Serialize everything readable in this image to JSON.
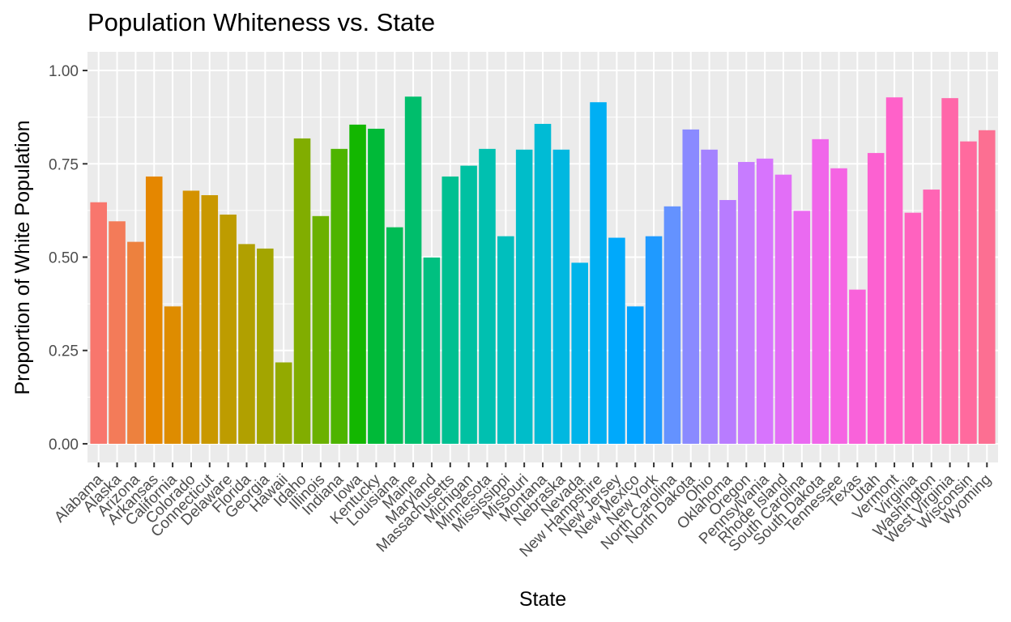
{
  "chart_data": {
    "type": "bar",
    "title": "Population Whiteness vs. State",
    "xlabel": "State",
    "ylabel": "Proportion of White Population",
    "ylim": [
      -0.05,
      1.05
    ],
    "yticks": [
      "0.00",
      "0.25",
      "0.50",
      "0.75",
      "1.00"
    ],
    "grid": true,
    "legend": "none",
    "categories": [
      "Alabama",
      "Alaska",
      "Arizona",
      "Arkansas",
      "California",
      "Colorado",
      "Connecticut",
      "Delaware",
      "Florida",
      "Georgia",
      "Hawaii",
      "Idaho",
      "Illinois",
      "Indiana",
      "Iowa",
      "Kentucky",
      "Louisiana",
      "Maine",
      "Maryland",
      "Massachusetts",
      "Michigan",
      "Minnesota",
      "Mississippi",
      "Missouri",
      "Montana",
      "Nebraska",
      "Nevada",
      "New Hampshire",
      "New Jersey",
      "New Mexico",
      "New York",
      "North Carolina",
      "North Dakota",
      "Ohio",
      "Oklahoma",
      "Oregon",
      "Pennsylvania",
      "Rhode Island",
      "South Carolina",
      "South Dakota",
      "Tennessee",
      "Texas",
      "Utah",
      "Vermont",
      "Virginia",
      "Washington",
      "West Virginia",
      "Wisconsin",
      "Wyoming"
    ],
    "values": [
      0.647,
      0.596,
      0.541,
      0.716,
      0.368,
      0.678,
      0.666,
      0.614,
      0.535,
      0.523,
      0.218,
      0.818,
      0.61,
      0.79,
      0.855,
      0.844,
      0.58,
      0.93,
      0.499,
      0.716,
      0.745,
      0.79,
      0.556,
      0.788,
      0.857,
      0.788,
      0.485,
      0.915,
      0.552,
      0.368,
      0.556,
      0.636,
      0.842,
      0.788,
      0.653,
      0.755,
      0.764,
      0.721,
      0.624,
      0.816,
      0.738,
      0.413,
      0.779,
      0.928,
      0.619,
      0.681,
      0.926,
      0.81,
      0.84
    ],
    "colors": [
      "#F8766D",
      "#F37B59",
      "#ED813E",
      "#E58700",
      "#DE8C00",
      "#D49200",
      "#C99800",
      "#BE9C00",
      "#B1A000",
      "#A3A500",
      "#93AA00",
      "#81AD00",
      "#6BB100",
      "#4EB400",
      "#13B700",
      "#00BA38",
      "#00BC55",
      "#00BE6C",
      "#00C080",
      "#00C091",
      "#00C1A2",
      "#00C0B0",
      "#00BFBD",
      "#00BDC9",
      "#00BBD5",
      "#00B8E0",
      "#00B4EA",
      "#00AFF3",
      "#00A9FB",
      "#00A2FF",
      "#1F9AFF",
      "#6492FF",
      "#8A8AFF",
      "#A482FF",
      "#B87CFF",
      "#C77CFF",
      "#D774FD",
      "#E26EF7",
      "#EA6AF1",
      "#F066EA",
      "#F564E3",
      "#F962DA",
      "#FC61D1",
      "#FF61C9",
      "#FF62BF",
      "#FF64B4",
      "#FF67A9",
      "#FF6A9E",
      "#FC6F92"
    ]
  }
}
